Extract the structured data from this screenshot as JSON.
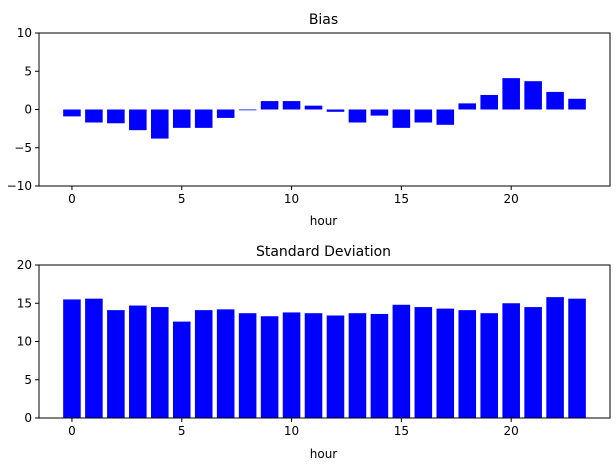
{
  "chart_data": [
    {
      "type": "bar",
      "title": "Bias",
      "xlabel": "hour",
      "ylabel": "",
      "x": [
        0,
        1,
        2,
        3,
        4,
        5,
        6,
        7,
        8,
        9,
        10,
        11,
        12,
        13,
        14,
        15,
        16,
        17,
        18,
        19,
        20,
        21,
        22,
        23
      ],
      "values": [
        -0.9,
        -1.7,
        -1.8,
        -2.7,
        -3.8,
        -2.4,
        -2.4,
        -1.1,
        -0.1,
        1.1,
        1.1,
        0.5,
        -0.3,
        -1.7,
        -0.8,
        -2.4,
        -1.7,
        -2.0,
        0.8,
        1.9,
        4.1,
        3.7,
        2.3,
        1.4
      ],
      "xlim": [
        -1.5,
        24.5
      ],
      "ylim": [
        -10,
        10
      ],
      "xticks": [
        0,
        5,
        10,
        15,
        20
      ],
      "yticks": [
        -10,
        -5,
        0,
        5,
        10
      ],
      "bar_color": "#0000ff",
      "grid": false
    },
    {
      "type": "bar",
      "title": "Standard Deviation",
      "xlabel": "hour",
      "ylabel": "",
      "x": [
        0,
        1,
        2,
        3,
        4,
        5,
        6,
        7,
        8,
        9,
        10,
        11,
        12,
        13,
        14,
        15,
        16,
        17,
        18,
        19,
        20,
        21,
        22,
        23
      ],
      "values": [
        15.5,
        15.6,
        14.1,
        14.7,
        14.5,
        12.6,
        14.1,
        14.2,
        13.7,
        13.3,
        13.8,
        13.7,
        13.4,
        13.7,
        13.6,
        14.8,
        14.5,
        14.3,
        14.1,
        13.7,
        15.0,
        14.5,
        15.8,
        15.6
      ],
      "xlim": [
        -1.5,
        24.5
      ],
      "ylim": [
        0,
        20
      ],
      "xticks": [
        0,
        5,
        10,
        15,
        20
      ],
      "yticks": [
        0,
        5,
        10,
        15,
        20
      ],
      "bar_color": "#0000ff",
      "grid": false
    }
  ]
}
